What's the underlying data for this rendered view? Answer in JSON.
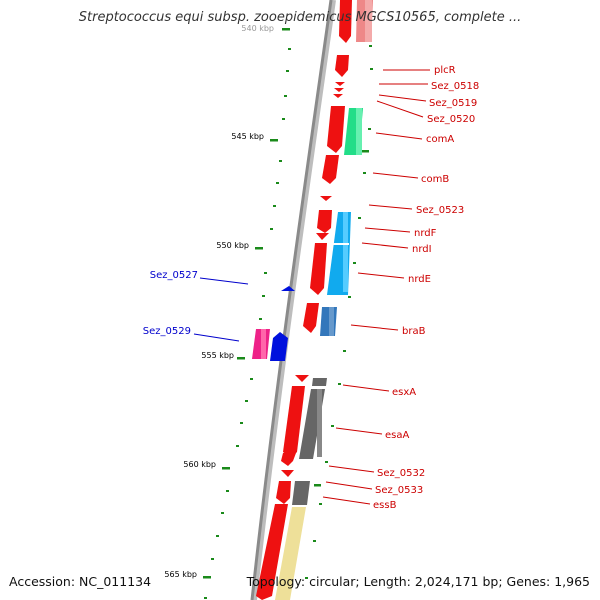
{
  "title": "Streptococcus equi subsp. zooepidemicus MGCS10565, complete ...",
  "footer": {
    "accession": "Accession: NC_011134",
    "summary": "Topology: circular; Length: 2,024,171 bp; Genes: 1,965"
  },
  "colors": {
    "backbone": "#8a8a8a",
    "tick": "#1a8a1a",
    "forward_gene": "#ee1111",
    "forward_label": "#cc0000",
    "reverse_label": "#0000cc",
    "green_gene": "#22dd88",
    "cyan_gene": "#11aaee",
    "steel_gene": "#3377bb",
    "grey_gene": "#666666",
    "yellow_gene": "#eee099",
    "pink_gene": "#ee2288",
    "blue_gene": "#0011dd",
    "pale_red_gene": "#ee8888"
  },
  "kbp_labels": [
    "540 kbp",
    "545 kbp",
    "550 kbp",
    "555 kbp",
    "560 kbp",
    "565 kbp"
  ],
  "gene_labels_right": [
    "plcR",
    "Sez_0518",
    "Sez_0519",
    "Sez_0520",
    "comA",
    "comB",
    "Sez_0523",
    "nrdF",
    "nrdI",
    "nrdE",
    "braB",
    "esxA",
    "esaA",
    "Sez_0532",
    "Sez_0533",
    "essB"
  ],
  "gene_labels_left": [
    "Sez_0527",
    "Sez_0529"
  ]
}
